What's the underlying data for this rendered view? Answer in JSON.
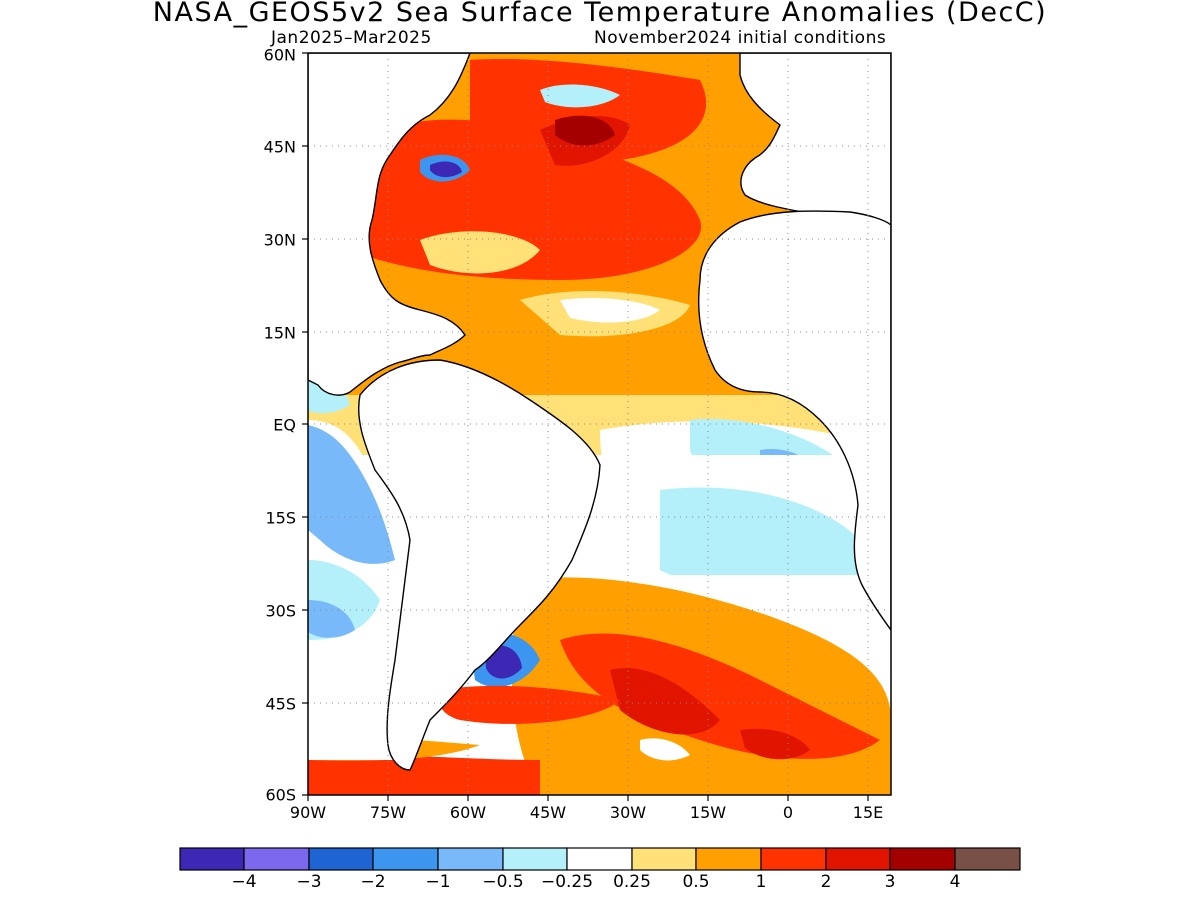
{
  "title": "NASA_GEOS5v2 Sea Surface Temperature Anomalies (DecC)",
  "subtitle_left": "Jan2025–Mar2025",
  "subtitle_right": "November2024 initial conditions",
  "map": {
    "lon_range": [
      -90,
      19
    ],
    "lat_range": [
      -60,
      60
    ],
    "lat_labels": [
      "60N",
      "45N",
      "30N",
      "15N",
      "EQ",
      "15S",
      "30S",
      "45S",
      "60S"
    ],
    "lon_labels": [
      "90W",
      "75W",
      "60W",
      "45W",
      "30W",
      "15W",
      "0",
      "15E"
    ],
    "gridlines": "dotted"
  },
  "colorbar": {
    "labels": [
      "−4",
      "−3",
      "−2",
      "−1",
      "−0.5",
      "−0.25",
      "0.25",
      "0.5",
      "1",
      "2",
      "3",
      "4"
    ],
    "colors": [
      "#3c28b4",
      "#7b68ee",
      "#1e64d2",
      "#3c96f0",
      "#78b9fa",
      "#b4f0fa",
      "#ffffff",
      "#ffe178",
      "#ffa000",
      "#ff3200",
      "#e11400",
      "#a50000",
      "#785046"
    ]
  },
  "palette": {
    "missing_cold": "#b4f0fa",
    "missing_hot": "#785046"
  }
}
